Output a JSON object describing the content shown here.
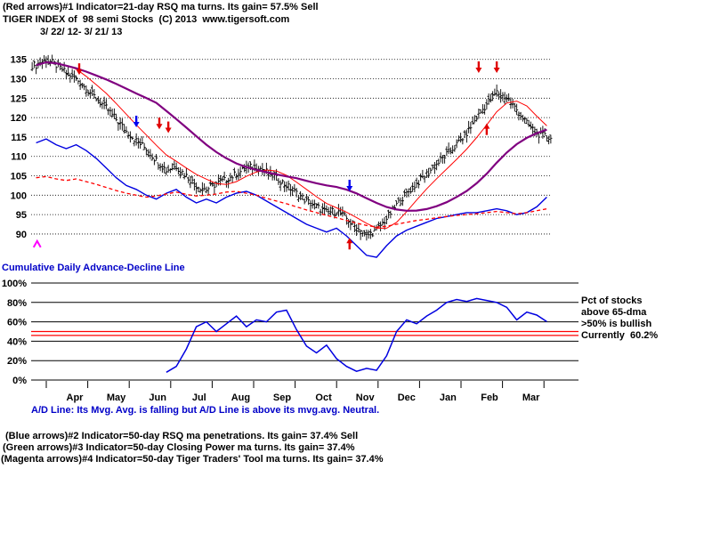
{
  "header": {
    "line1": "(Red arrows)#1 Indicator=21-day RSQ ma turns. Its gain= 57.5% Sell",
    "line2": "TIGER INDEX of  98 semi Stocks  (C) 2013  www.tigersoft.com",
    "line3": "3/ 22/ 12- 3/ 21/ 13"
  },
  "labels": {
    "ad_line_title": "Cumulative Daily Advance-Decline Line",
    "pct_note_1": "Pct of stocks",
    "pct_note_2": "above 65-dma",
    "pct_note_3": ">50% is bullish",
    "pct_note_4": "Currently  60.2%",
    "ad_line_comment": "A/D Line: Its Mvg. Avg. is falling but A/D Line is above its mvg.avg. Neutral.",
    "footer_blue": "(Blue arrows)#2 Indicator=50-day RSQ ma penetrations. Its gain= 37.4% Sell",
    "footer_green": "(Green arrows)#3 Indicator=50-day Closing Power ma turns. Its gain= 37.4%",
    "footer_magenta": "(Magenta arrows)#4 Indicator=50-day Tiger Traders' Tool ma turns. Its gain= 37.4%"
  },
  "colors": {
    "text_black": "#000000",
    "text_blue": "#0000c8",
    "bars": "#000000",
    "ma21": "#ff0000",
    "ma65": "#800080",
    "closing_power": "#0000e0",
    "relative_strength": "#ff0000",
    "pct_line": "#0000e0",
    "threshold": "#ff0000",
    "arrow_red": "#e00000",
    "arrow_blue": "#0000f0",
    "arrow_magenta": "#ff00ff"
  },
  "chart_data": [
    {
      "type": "candlestick",
      "title": "TIGER INDEX of 98 semi Stocks",
      "date_range": "3/ 22/ 12- 3/ 21/ 13",
      "ylim": [
        87,
        137
      ],
      "yticks": [
        135,
        130,
        125,
        120,
        115,
        110,
        105,
        100,
        95,
        90
      ],
      "x_months": [
        "Apr",
        "May",
        "Jun",
        "Jul",
        "Aug",
        "Sep",
        "Oct",
        "Nov",
        "Dec",
        "Jan",
        "Feb",
        "Mar"
      ],
      "grid": "dotted-horizontal",
      "weekly_close": [
        133.5,
        135,
        133.5,
        131.5,
        130,
        127.5,
        125,
        122.5,
        119.5,
        116.5,
        114,
        112,
        109,
        106.5,
        107.5,
        105,
        102.5,
        101.5,
        103,
        104,
        105.5,
        107,
        107.5,
        106,
        104.5,
        102.5,
        100.5,
        98.5,
        97,
        95.5,
        96,
        94,
        91.5,
        89.5,
        91,
        94,
        97.5,
        100.5,
        103,
        105.5,
        108,
        110.5,
        113,
        116,
        120,
        123.5,
        126.5,
        125,
        122,
        118.5,
        116,
        115
      ],
      "lines": [
        {
          "name": "21-day ma",
          "color": "#ff0000",
          "width": 1,
          "dash": "",
          "derive": {
            "ma_of": "weekly_close",
            "window": 4
          }
        },
        {
          "name": "65-day ma",
          "color": "#800080",
          "width": 2.2,
          "dash": "",
          "derive": {
            "ma_of": "weekly_close",
            "window": 13
          }
        },
        {
          "name": "closing power",
          "color": "#0000e0",
          "width": 1.4,
          "dash": "",
          "values": [
            113.5,
            114.5,
            113,
            112,
            113,
            111.5,
            109.5,
            107,
            104.5,
            102.5,
            101.5,
            100,
            99,
            100.5,
            101.5,
            99.5,
            98,
            99,
            98,
            99.5,
            100.5,
            101,
            100,
            98.5,
            97,
            95.5,
            94,
            92.5,
            91.5,
            90.5,
            91.5,
            89.5,
            87,
            84.5,
            84,
            87,
            89.5,
            91,
            92,
            93,
            94,
            94.5,
            95,
            95.5,
            95.5,
            96,
            96.5,
            96,
            95,
            95.5,
            97,
            99.5
          ]
        },
        {
          "name": "relative strength",
          "color": "#ff0000",
          "width": 1.3,
          "dash": "4 3",
          "values": [
            104.5,
            104.8,
            104.2,
            103.8,
            104.2,
            103.5,
            102.8,
            102,
            101.2,
            100.5,
            100,
            99.5,
            99.8,
            100.3,
            100.8,
            100.2,
            99.8,
            100,
            100.3,
            100.8,
            101,
            100.5,
            100,
            99.2,
            98.5,
            97.8,
            97,
            96.2,
            95.5,
            94.8,
            94.2,
            93.5,
            92.8,
            92.2,
            91.8,
            92,
            92.5,
            93,
            93.5,
            93.8,
            94.2,
            94.5,
            94.8,
            95,
            95.2,
            95.5,
            95.8,
            95.5,
            95.2,
            95.5,
            96,
            96.5
          ]
        }
      ],
      "arrows": [
        {
          "week": 4.3,
          "price": 131,
          "dir": "down",
          "color": "#e00000",
          "label": "red-sell"
        },
        {
          "week": 10,
          "price": 117.5,
          "dir": "down",
          "color": "#0000f0",
          "label": "blue-sell"
        },
        {
          "week": 12.3,
          "price": 117,
          "dir": "down",
          "color": "#e00000",
          "label": "red-sell"
        },
        {
          "week": 13.2,
          "price": 116,
          "dir": "down",
          "color": "#e00000",
          "label": "red-sell"
        },
        {
          "week": 31.3,
          "price": 101,
          "dir": "down",
          "color": "#0000f0",
          "label": "blue-sell"
        },
        {
          "week": 31.3,
          "price": 89,
          "dir": "up",
          "color": "#e00000",
          "label": "red-buy"
        },
        {
          "week": 45,
          "price": 118.5,
          "dir": "up",
          "color": "#e00000",
          "label": "red-buy"
        },
        {
          "week": 44.2,
          "price": 131.5,
          "dir": "down",
          "color": "#e00000",
          "label": "red-sell"
        },
        {
          "week": 46,
          "price": 131.5,
          "dir": "down",
          "color": "#e00000",
          "label": "red-sell"
        },
        {
          "week": 0.1,
          "price": 87.5,
          "dir": "caret",
          "color": "#ff00ff",
          "label": "magenta-buy"
        }
      ]
    },
    {
      "type": "line",
      "name": "Pct of stocks above 65-dma",
      "ylim": [
        0,
        100
      ],
      "yticks": [
        100,
        80,
        60,
        40,
        20,
        0
      ],
      "ytick_suffix": "%",
      "threshold_lines": [
        {
          "value": 50,
          "color": "#ff0000"
        },
        {
          "value": 46,
          "color": "#ff0000"
        }
      ],
      "current_value": 60.2,
      "values": [
        null,
        null,
        null,
        null,
        null,
        null,
        null,
        null,
        null,
        null,
        null,
        null,
        null,
        8,
        14,
        32,
        55,
        60,
        50,
        58,
        66,
        55,
        62,
        60,
        70,
        72,
        52,
        35,
        28,
        36,
        22,
        14,
        9,
        12,
        10,
        25,
        50,
        62,
        58,
        66,
        72,
        80,
        83,
        81,
        84,
        82,
        80,
        75,
        62,
        70,
        67,
        60.2
      ]
    }
  ]
}
